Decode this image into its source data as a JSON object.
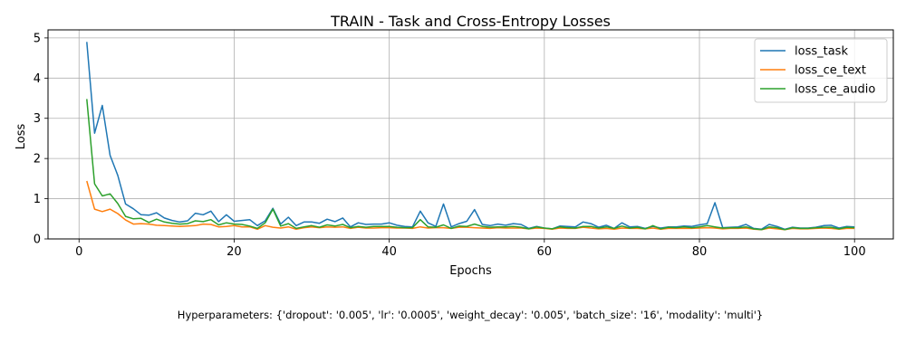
{
  "chart_data": {
    "type": "line",
    "title": "TRAIN - Task and Cross-Entropy Losses",
    "xlabel": "Epochs",
    "ylabel": "Loss",
    "xlim": [
      -4,
      105
    ],
    "ylim": [
      0,
      5.2
    ],
    "xticks": [
      0,
      20,
      40,
      60,
      80,
      100
    ],
    "yticks": [
      0,
      1,
      2,
      3,
      4,
      5
    ],
    "grid": true,
    "legend_position": "top-right",
    "x": [
      1,
      2,
      3,
      4,
      5,
      6,
      7,
      8,
      9,
      10,
      11,
      12,
      13,
      14,
      15,
      16,
      17,
      18,
      19,
      20,
      21,
      22,
      23,
      24,
      25,
      26,
      27,
      28,
      29,
      30,
      31,
      32,
      33,
      34,
      35,
      36,
      37,
      38,
      39,
      40,
      41,
      42,
      43,
      44,
      45,
      46,
      47,
      48,
      49,
      50,
      51,
      52,
      53,
      54,
      55,
      56,
      57,
      58,
      59,
      60,
      61,
      62,
      63,
      64,
      65,
      66,
      67,
      68,
      69,
      70,
      71,
      72,
      73,
      74,
      75,
      76,
      77,
      78,
      79,
      80,
      81,
      82,
      83,
      84,
      85,
      86,
      87,
      88,
      89,
      90,
      91,
      92,
      93,
      94,
      95,
      96,
      97,
      98,
      99,
      100
    ],
    "series": [
      {
        "name": "loss_task",
        "color": "#1f77b4",
        "values": [
          4.9,
          2.63,
          3.32,
          2.08,
          1.58,
          0.87,
          0.75,
          0.6,
          0.59,
          0.65,
          0.52,
          0.46,
          0.42,
          0.45,
          0.64,
          0.6,
          0.69,
          0.43,
          0.6,
          0.44,
          0.46,
          0.48,
          0.33,
          0.45,
          0.76,
          0.37,
          0.54,
          0.33,
          0.42,
          0.42,
          0.39,
          0.49,
          0.43,
          0.52,
          0.3,
          0.4,
          0.36,
          0.37,
          0.37,
          0.4,
          0.34,
          0.31,
          0.3,
          0.69,
          0.4,
          0.31,
          0.87,
          0.3,
          0.38,
          0.44,
          0.73,
          0.36,
          0.33,
          0.37,
          0.34,
          0.38,
          0.36,
          0.26,
          0.31,
          0.27,
          0.25,
          0.32,
          0.31,
          0.3,
          0.42,
          0.38,
          0.29,
          0.34,
          0.26,
          0.4,
          0.3,
          0.31,
          0.26,
          0.31,
          0.27,
          0.3,
          0.3,
          0.32,
          0.31,
          0.35,
          0.38,
          0.9,
          0.28,
          0.29,
          0.3,
          0.36,
          0.26,
          0.24,
          0.36,
          0.31,
          0.24,
          0.29,
          0.27,
          0.27,
          0.29,
          0.33,
          0.34,
          0.27,
          0.31,
          0.3
        ]
      },
      {
        "name": "loss_ce_text",
        "color": "#ff7f0e",
        "values": [
          1.44,
          0.74,
          0.68,
          0.74,
          0.63,
          0.47,
          0.37,
          0.38,
          0.37,
          0.34,
          0.33,
          0.32,
          0.31,
          0.32,
          0.33,
          0.37,
          0.36,
          0.3,
          0.31,
          0.33,
          0.3,
          0.3,
          0.24,
          0.33,
          0.29,
          0.27,
          0.3,
          0.24,
          0.28,
          0.3,
          0.28,
          0.3,
          0.29,
          0.3,
          0.26,
          0.29,
          0.27,
          0.27,
          0.28,
          0.28,
          0.27,
          0.27,
          0.26,
          0.3,
          0.27,
          0.28,
          0.28,
          0.26,
          0.29,
          0.29,
          0.28,
          0.27,
          0.26,
          0.28,
          0.27,
          0.27,
          0.27,
          0.25,
          0.27,
          0.26,
          0.24,
          0.27,
          0.26,
          0.26,
          0.29,
          0.27,
          0.25,
          0.26,
          0.24,
          0.27,
          0.26,
          0.26,
          0.25,
          0.27,
          0.24,
          0.26,
          0.26,
          0.26,
          0.26,
          0.27,
          0.28,
          0.27,
          0.25,
          0.26,
          0.26,
          0.27,
          0.24,
          0.23,
          0.27,
          0.25,
          0.23,
          0.26,
          0.25,
          0.25,
          0.26,
          0.27,
          0.26,
          0.24,
          0.26,
          0.26
        ]
      },
      {
        "name": "loss_ce_audio",
        "color": "#2ca02c",
        "values": [
          3.48,
          1.37,
          1.07,
          1.12,
          0.88,
          0.56,
          0.5,
          0.51,
          0.41,
          0.49,
          0.42,
          0.39,
          0.37,
          0.38,
          0.45,
          0.43,
          0.48,
          0.35,
          0.4,
          0.37,
          0.36,
          0.32,
          0.26,
          0.4,
          0.74,
          0.32,
          0.38,
          0.26,
          0.3,
          0.33,
          0.29,
          0.35,
          0.32,
          0.36,
          0.28,
          0.31,
          0.29,
          0.31,
          0.31,
          0.31,
          0.29,
          0.28,
          0.28,
          0.48,
          0.3,
          0.29,
          0.35,
          0.26,
          0.32,
          0.31,
          0.37,
          0.31,
          0.29,
          0.3,
          0.3,
          0.31,
          0.29,
          0.25,
          0.3,
          0.27,
          0.25,
          0.3,
          0.28,
          0.27,
          0.31,
          0.31,
          0.27,
          0.3,
          0.26,
          0.32,
          0.27,
          0.29,
          0.25,
          0.33,
          0.25,
          0.29,
          0.28,
          0.3,
          0.28,
          0.3,
          0.33,
          0.3,
          0.27,
          0.28,
          0.28,
          0.3,
          0.25,
          0.23,
          0.3,
          0.28,
          0.23,
          0.28,
          0.26,
          0.26,
          0.28,
          0.29,
          0.29,
          0.25,
          0.29,
          0.28
        ]
      }
    ],
    "footnote": "Hyperparameters: {'dropout': '0.005', 'lr': '0.0005', 'weight_decay': '0.005', 'batch_size': '16', 'modality': 'multi'}"
  }
}
